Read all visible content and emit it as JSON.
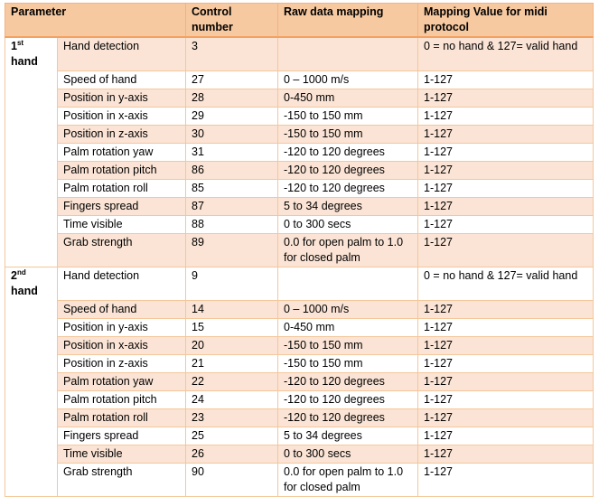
{
  "header": {
    "parameter": "Parameter",
    "control": "Control number",
    "raw": "Raw data mapping",
    "mapping": "Mapping Value for midi protocol"
  },
  "sections": [
    {
      "label_num": "1",
      "label_sup": "st",
      "label_word": "hand",
      "rows": [
        {
          "param": "Hand detection",
          "control": "3",
          "raw": "",
          "mapping": "0 = no hand & 127= valid hand"
        },
        {
          "param": "Speed of hand",
          "control": "27",
          "raw": "0 – 1000 m/s",
          "mapping": "1-127"
        },
        {
          "param": "Position in y-axis",
          "control": "28",
          "raw": "0-450 mm",
          "mapping": "1-127"
        },
        {
          "param": "Position in x-axis",
          "control": "29",
          "raw": "-150 to 150 mm",
          "mapping": "1-127"
        },
        {
          "param": "Position in z-axis",
          "control": "30",
          "raw": "-150 to 150 mm",
          "mapping": "1-127"
        },
        {
          "param": "Palm rotation yaw",
          "control": "31",
          "raw": "-120 to 120 degrees",
          "mapping": "1-127"
        },
        {
          "param": "Palm rotation pitch",
          "control": "86",
          "raw": "-120 to 120 degrees",
          "mapping": "1-127"
        },
        {
          "param": "Palm rotation roll",
          "control": "85",
          "raw": "-120 to 120 degrees",
          "mapping": "1-127"
        },
        {
          "param": "Fingers spread",
          "control": "87",
          "raw": "5 to 34 degrees",
          "mapping": "1-127"
        },
        {
          "param": "Time visible",
          "control": "88",
          "raw": "0 to 300 secs",
          "mapping": "1-127"
        },
        {
          "param": "Grab strength",
          "control": "89",
          "raw": "0.0 for open palm to 1.0 for closed palm",
          "mapping": "1-127"
        }
      ]
    },
    {
      "label_num": "2",
      "label_sup": "nd",
      "label_word": "hand",
      "rows": [
        {
          "param": "Hand detection",
          "control": "9",
          "raw": "",
          "mapping": "0 = no hand & 127= valid hand"
        },
        {
          "param": "Speed of hand",
          "control": "14",
          "raw": "0 – 1000 m/s",
          "mapping": "1-127"
        },
        {
          "param": "Position in y-axis",
          "control": "15",
          "raw": "0-450 mm",
          "mapping": "1-127"
        },
        {
          "param": "Position in x-axis",
          "control": "20",
          "raw": "-150 to 150 mm",
          "mapping": "1-127"
        },
        {
          "param": "Position in z-axis",
          "control": "21",
          "raw": "-150 to 150 mm",
          "mapping": "1-127"
        },
        {
          "param": "Palm rotation yaw",
          "control": "22",
          "raw": "-120 to 120 degrees",
          "mapping": "1-127"
        },
        {
          "param": "Palm rotation pitch",
          "control": "24",
          "raw": "-120 to 120 degrees",
          "mapping": "1-127"
        },
        {
          "param": "Palm rotation roll",
          "control": "23",
          "raw": "-120 to 120 degrees",
          "mapping": "1-127"
        },
        {
          "param": "Fingers spread",
          "control": "25",
          "raw": "5 to 34 degrees",
          "mapping": "1-127"
        },
        {
          "param": "Time visible",
          "control": "26",
          "raw": "0 to 300 secs",
          "mapping": "1-127"
        },
        {
          "param": "Grab strength",
          "control": "90",
          "raw": "0.0 for open palm to 1.0 for closed palm",
          "mapping": "1-127"
        }
      ]
    }
  ]
}
